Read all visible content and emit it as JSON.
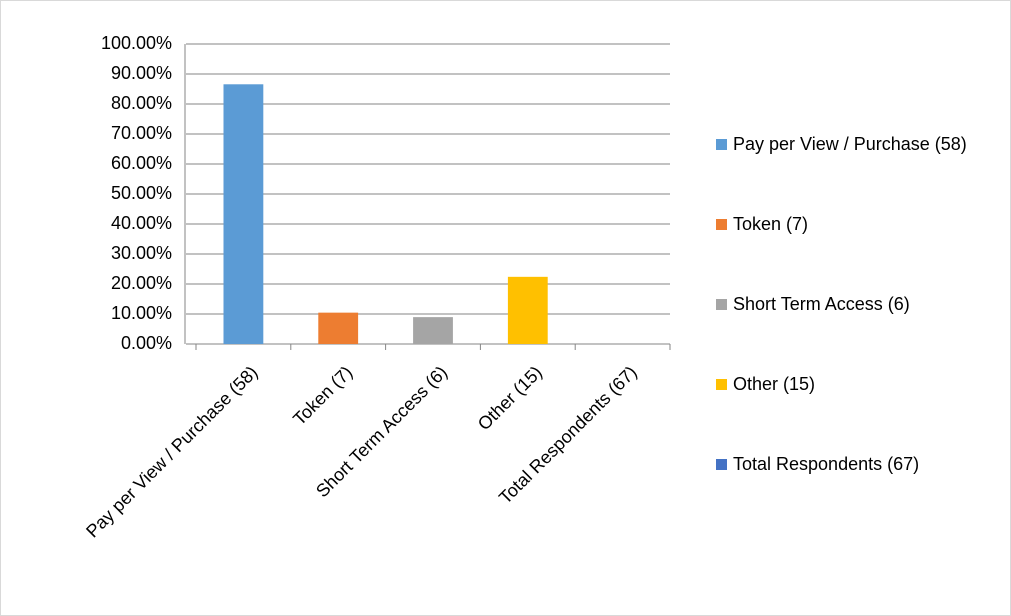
{
  "chart_data": {
    "type": "bar",
    "categories": [
      "Pay per View / Purchase  (58)",
      "Token  (7)",
      "Short Term Access  (6)",
      "Other  (15)",
      "Total Respondents  (67)"
    ],
    "values": [
      86.57,
      10.45,
      8.96,
      22.39,
      0
    ],
    "colors": [
      "#5b9bd5",
      "#ed7d31",
      "#a5a5a5",
      "#ffc000",
      "#4472c4"
    ],
    "ylim": [
      0,
      100
    ],
    "yticks": [
      {
        "value": 0,
        "label": "0.00%"
      },
      {
        "value": 10,
        "label": "10.00%"
      },
      {
        "value": 20,
        "label": "20.00%"
      },
      {
        "value": 30,
        "label": "30.00%"
      },
      {
        "value": 40,
        "label": "40.00%"
      },
      {
        "value": 50,
        "label": "50.00%"
      },
      {
        "value": 60,
        "label": "60.00%"
      },
      {
        "value": 70,
        "label": "70.00%"
      },
      {
        "value": 80,
        "label": "80.00%"
      },
      {
        "value": 90,
        "label": "90.00%"
      },
      {
        "value": 100,
        "label": "100.00%"
      }
    ],
    "grid": true,
    "legend": "right"
  }
}
